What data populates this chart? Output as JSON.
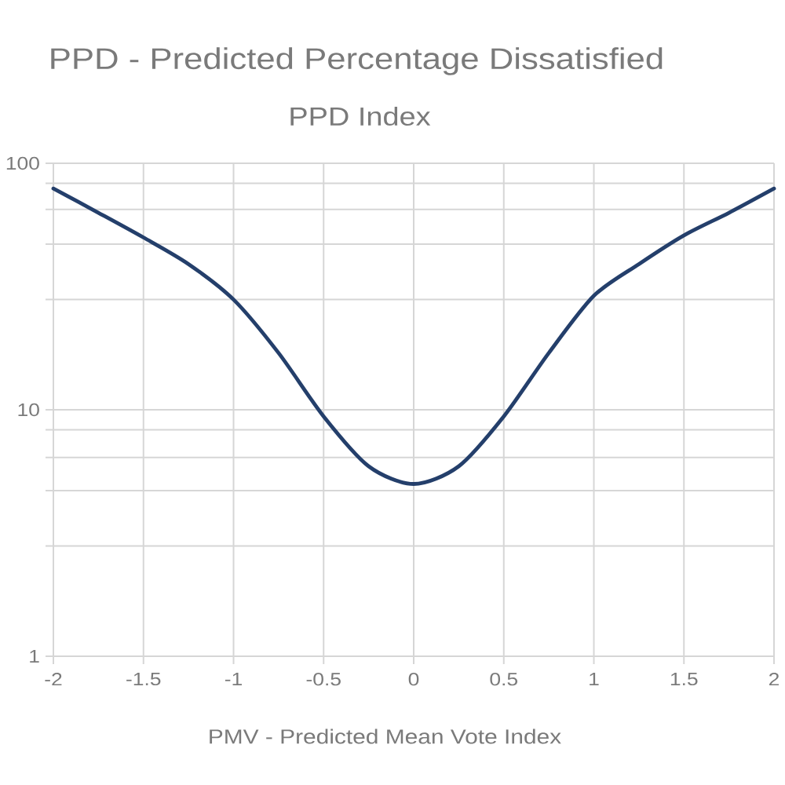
{
  "chart_data": {
    "type": "line",
    "title": "PPD - Predicted Percentage Dissatisfied",
    "subtitle": "PPD Index",
    "xlabel": "PMV - Predicted Mean Vote Index",
    "x": [
      -2,
      -1.75,
      -1.5,
      -1.25,
      -1,
      -0.75,
      -0.5,
      -0.25,
      0,
      0.25,
      0.5,
      0.75,
      1,
      1.25,
      1.5,
      1.75,
      2
    ],
    "series": [
      {
        "color": "#243f6b",
        "values": [
          79,
          63,
          50,
          39,
          28,
          17,
          9.4,
          5.9,
          5,
          5.9,
          9.4,
          17,
          29,
          39,
          51,
          63,
          79
        ]
      }
    ],
    "xlim": [
      -2,
      2
    ],
    "ylim": [
      1,
      100
    ],
    "xticks": [
      -2,
      -1.5,
      -1,
      -0.5,
      0,
      0.5,
      1,
      1.5,
      2
    ],
    "yticks": [
      1,
      {
        "value": 2.8,
        "label": null
      },
      {
        "value": 4.7,
        "label": null
      },
      {
        "value": 6.4,
        "label": null
      },
      {
        "value": 8.3,
        "label": null
      },
      10,
      {
        "value": 28,
        "label": null
      },
      {
        "value": 47,
        "label": null
      },
      {
        "value": 65,
        "label": null
      },
      {
        "value": 83,
        "label": null
      },
      100
    ],
    "log": "y",
    "grid": true,
    "line_style": "solid"
  }
}
